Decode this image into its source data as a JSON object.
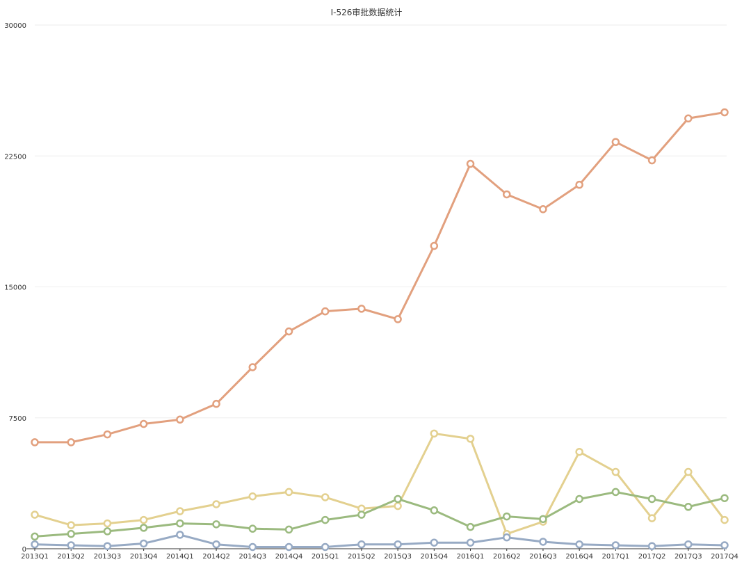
{
  "chart_data": {
    "type": "line",
    "title": "I-526审批数据统计",
    "xlabel": "",
    "ylabel": "",
    "categories": [
      "2013Q1",
      "2013Q2",
      "2013Q3",
      "2013Q4",
      "2014Q1",
      "2014Q2",
      "2014Q3",
      "2014Q4",
      "2015Q1",
      "2015Q2",
      "2015Q3",
      "2015Q4",
      "2016Q1",
      "2016Q2",
      "2016Q3",
      "2016Q4",
      "2017Q1",
      "2017Q2",
      "2017Q3",
      "2017Q4"
    ],
    "yticks": [
      "0",
      "7500",
      "15000",
      "22500",
      "30000"
    ],
    "ylim": [
      0,
      30000
    ],
    "grid": true,
    "legend": "none",
    "series": [
      {
        "color": "#e2a07e",
        "values": [
          6100,
          6100,
          6550,
          7150,
          7400,
          8300,
          10400,
          12450,
          13600,
          13750,
          13150,
          17350,
          22050,
          20300,
          19450,
          20850,
          23300,
          22250,
          24650,
          25000
        ]
      },
      {
        "color": "#e3d08f",
        "values": [
          1950,
          1350,
          1450,
          1650,
          2150,
          2550,
          3000,
          3250,
          2950,
          2300,
          2450,
          6600,
          6300,
          850,
          1550,
          5550,
          4400,
          1750,
          4400,
          1650
        ]
      },
      {
        "color": "#9bba7f",
        "values": [
          700,
          850,
          1000,
          1200,
          1450,
          1400,
          1150,
          1100,
          1650,
          1950,
          2850,
          2200,
          1250,
          1850,
          1700,
          2850,
          3250,
          2850,
          2400,
          2900
        ]
      },
      {
        "color": "#97aac4",
        "values": [
          250,
          200,
          150,
          300,
          800,
          250,
          100,
          100,
          100,
          250,
          250,
          350,
          350,
          650,
          400,
          250,
          200,
          150,
          250,
          200
        ]
      }
    ]
  }
}
